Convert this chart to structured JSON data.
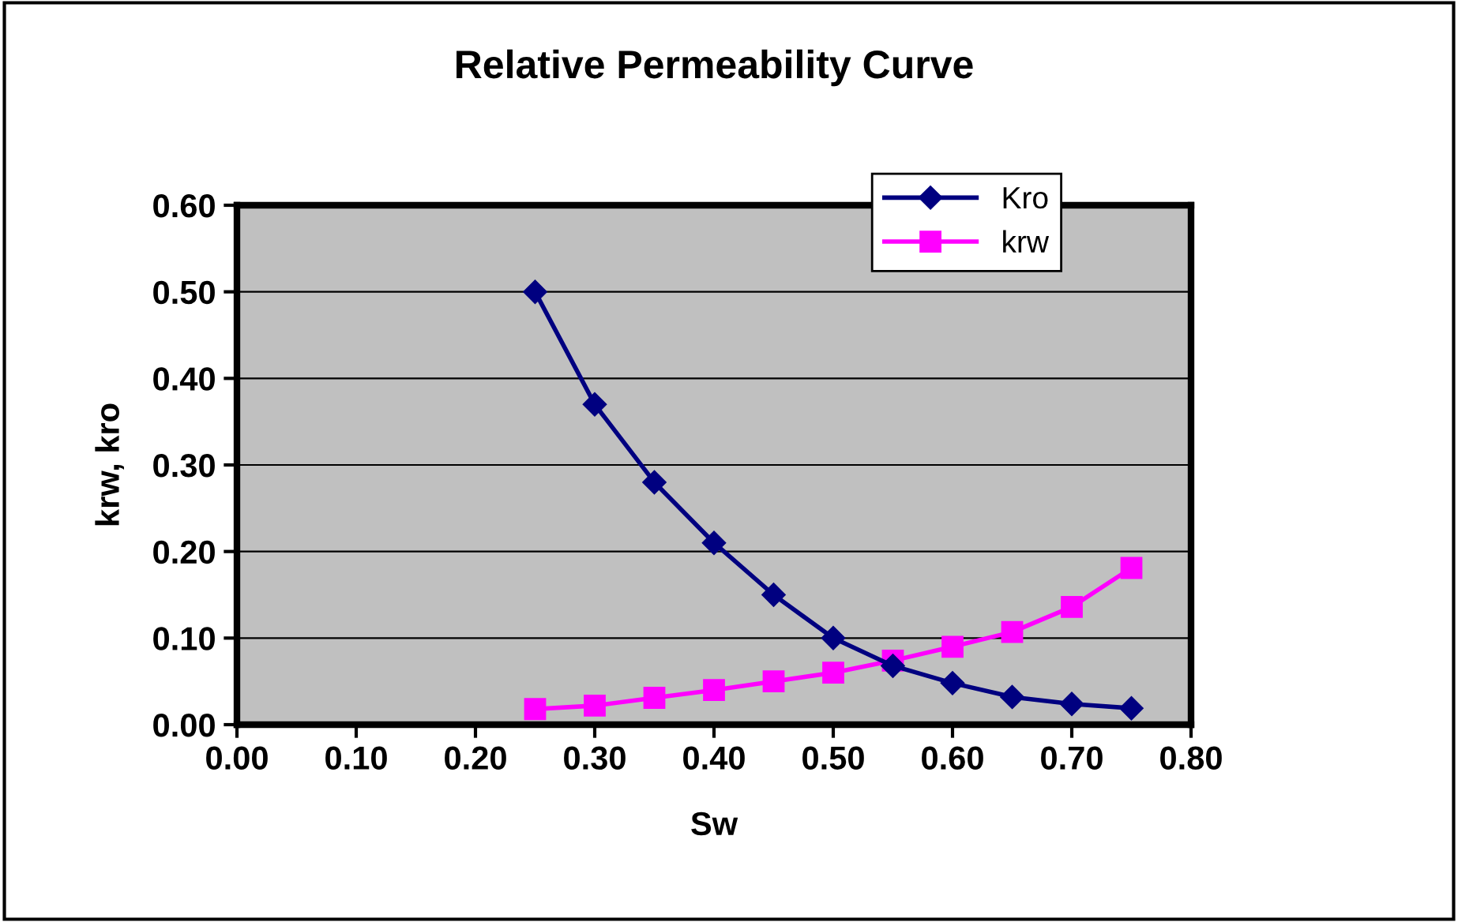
{
  "chart_data": {
    "type": "line",
    "title": "Relative Permeability Curve",
    "xlabel": "Sw",
    "ylabel": "krw, kro",
    "x": [
      0.25,
      0.3,
      0.35,
      0.4,
      0.45,
      0.5,
      0.55,
      0.6,
      0.65,
      0.7,
      0.75
    ],
    "series": [
      {
        "name": "Kro",
        "color": "#000080",
        "marker": "diamond",
        "values": [
          0.5,
          0.37,
          0.28,
          0.21,
          0.15,
          0.1,
          0.068,
          0.048,
          0.032,
          0.024,
          0.019
        ]
      },
      {
        "name": "krw",
        "color": "#ff00ff",
        "marker": "square",
        "values": [
          0.018,
          0.022,
          0.031,
          0.04,
          0.05,
          0.06,
          0.074,
          0.09,
          0.107,
          0.136,
          0.181
        ]
      }
    ],
    "xlim": [
      0,
      0.8
    ],
    "xticks": [
      {
        "value": 0,
        "label": "0.00"
      },
      {
        "value": 0.1,
        "label": "0.10"
      },
      {
        "value": 0.2,
        "label": "0.20"
      },
      {
        "value": 0.3,
        "label": "0.30"
      },
      {
        "value": 0.4,
        "label": "0.40"
      },
      {
        "value": 0.5,
        "label": "0.50"
      },
      {
        "value": 0.6,
        "label": "0.60"
      },
      {
        "value": 0.7,
        "label": "0.70"
      },
      {
        "value": 0.8,
        "label": "0.80"
      }
    ],
    "ylim": [
      0,
      0.6
    ],
    "yticks": [
      {
        "value": 0,
        "label": "0.00"
      },
      {
        "value": 0.1,
        "label": "0.10"
      },
      {
        "value": 0.2,
        "label": "0.20"
      },
      {
        "value": 0.3,
        "label": "0.30"
      },
      {
        "value": 0.4,
        "label": "0.40"
      },
      {
        "value": 0.5,
        "label": "0.50"
      },
      {
        "value": 0.6,
        "label": "0.60"
      }
    ],
    "grid": "y",
    "legend": "top right",
    "line_style": "solid"
  }
}
